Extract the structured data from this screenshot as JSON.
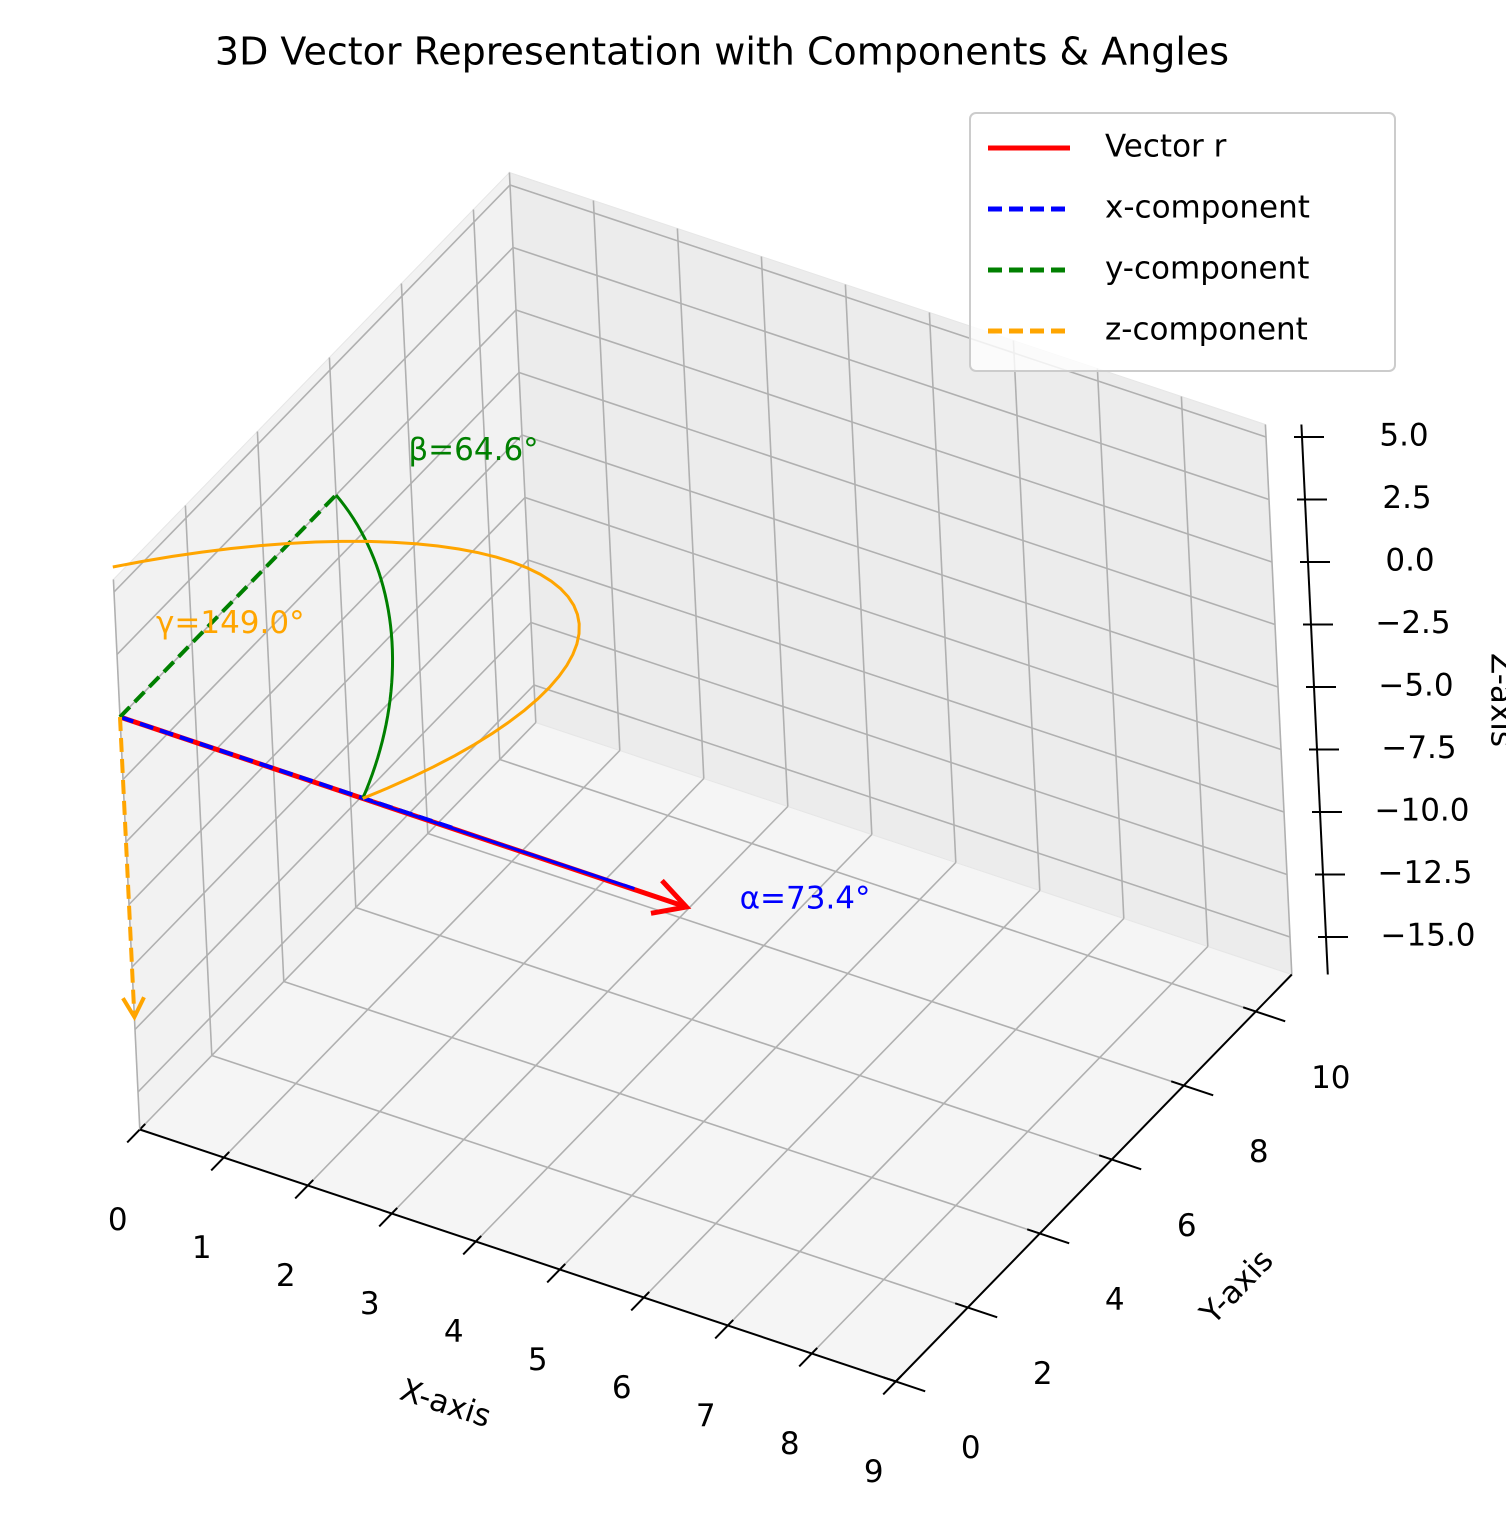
{
  "chart_data": {
    "type": "vector3d",
    "title": "3D Vector Representation with Components & Angles",
    "xlabel": "X-axis",
    "ylabel": "Y-axis",
    "zlabel": "Z-axis",
    "xlim": [
      0,
      9
    ],
    "ylim": [
      0,
      11
    ],
    "zlim": [
      -16.5,
      5.5
    ],
    "xticks": [
      0,
      1,
      2,
      3,
      4,
      5,
      6,
      7,
      8,
      9
    ],
    "yticks": [
      0,
      2,
      4,
      6,
      8,
      10
    ],
    "zticks": [
      {
        "value": -15,
        "label": "−15.0"
      },
      {
        "value": -12.5,
        "label": "−12.5"
      },
      {
        "value": -10,
        "label": "−10.0"
      },
      {
        "value": -7.5,
        "label": "−7.5"
      },
      {
        "value": -5,
        "label": "−5.0"
      },
      {
        "value": -2.5,
        "label": "−2.5"
      },
      {
        "value": 0,
        "label": "0.0"
      },
      {
        "value": 2.5,
        "label": "2.5"
      },
      {
        "value": 5,
        "label": "5.0"
      }
    ],
    "grid": true,
    "legend": "upper right",
    "series": [
      {
        "name": "Vector r",
        "color": "red",
        "style": "solid",
        "arrow": true,
        "x": [
          0,
          4
        ],
        "y": [
          0,
          6
        ],
        "z": [
          0,
          -12
        ]
      },
      {
        "name": "x-component",
        "color": "blue",
        "style": "dashed",
        "arrow": false,
        "x": [
          0,
          4
        ],
        "y": [
          0,
          0
        ],
        "z": [
          0,
          0
        ]
      },
      {
        "name": "y-component",
        "color": "green",
        "style": "dashed",
        "arrow": false,
        "x": [
          0,
          0
        ],
        "y": [
          0,
          6
        ],
        "z": [
          0,
          0
        ]
      },
      {
        "name": "z-component",
        "color": "orange",
        "style": "dashed",
        "arrow": true,
        "x": [
          0,
          0
        ],
        "y": [
          0,
          0
        ],
        "z": [
          0,
          -12
        ]
      }
    ],
    "angles": [
      {
        "label": "α=73.4°",
        "color": "blue",
        "axis": "x"
      },
      {
        "label": "β=64.6°",
        "color": "green",
        "axis": "y"
      },
      {
        "label": "γ=149.0°",
        "color": "orange",
        "axis": "z"
      }
    ]
  }
}
